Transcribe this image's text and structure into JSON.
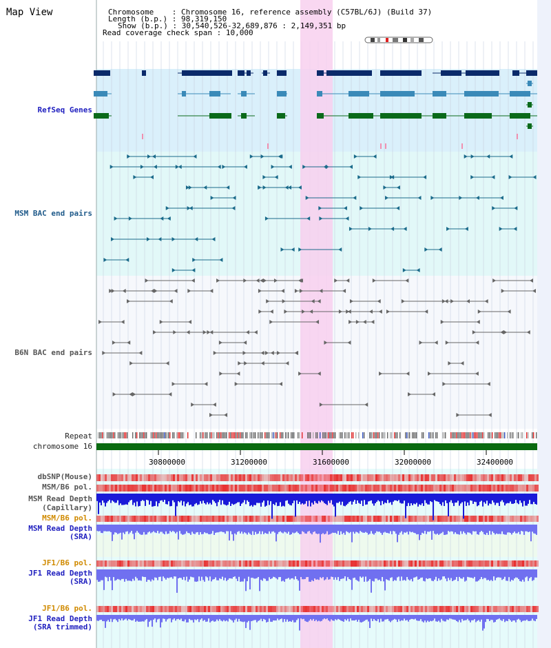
{
  "title": "Map View",
  "info": {
    "chromosome_key": "Chromosome    ",
    "chromosome_val": "Chromosome 16, reference assembly (C57BL/6J) (Build 37)",
    "length_key": "Length (b.p.)",
    "length_val": "98,319,150",
    "show_key": "Show (b.p.)",
    "show_val": "30,540,526-32,689,876 : 2,149,351 bp",
    "coverage_key": "Read coverage check span",
    "coverage_val": "10,000"
  },
  "tracks": {
    "refseq": "RefSeq Genes",
    "msm_bac": "MSM BAC end pairs",
    "b6n_bac": "B6N BAC end pairs",
    "repeat": "Repeat",
    "chrom": "chromosome 16",
    "dbsnp": "dbSNP(Mouse)",
    "msm_pol_cap": "MSM/B6 pol.",
    "msm_depth_cap_1": "MSM Read Depth",
    "msm_depth_cap_2": "(Capillary)",
    "msm_pol_sra": "MSM/B6 pol.",
    "msm_depth_sra_1": "MSM Read Depth",
    "msm_depth_sra_2": "(SRA)",
    "jf1_pol_1": "JF1/B6 pol.",
    "jf1_depth_1": "JF1 Read Depth",
    "jf1_depth_1b": "(SRA)",
    "jf1_pol_2": "JF1/B6 pol.",
    "jf1_depth_2": "JF1 Read Depth",
    "jf1_depth_2b": "(SRA trimmed)"
  },
  "axis": {
    "ticks": [
      "30800000",
      "31200000",
      "31600000",
      "32000000",
      "32400000"
    ]
  },
  "colors": {
    "refseq_dark": "#0a2a6a",
    "refseq_mid": "#3a8ab8",
    "refseq_green": "#0a6a1a",
    "msm_bg": "#dff4fa",
    "msm_line": "#1a6a8a",
    "b6n_line": "#666666",
    "highlight": "#f8d0ee",
    "chrom_bar": "#0a6a10",
    "depth_dark": "#1a1ad8",
    "depth_light": "#7070f0",
    "pol_red": "#e83030"
  }
}
